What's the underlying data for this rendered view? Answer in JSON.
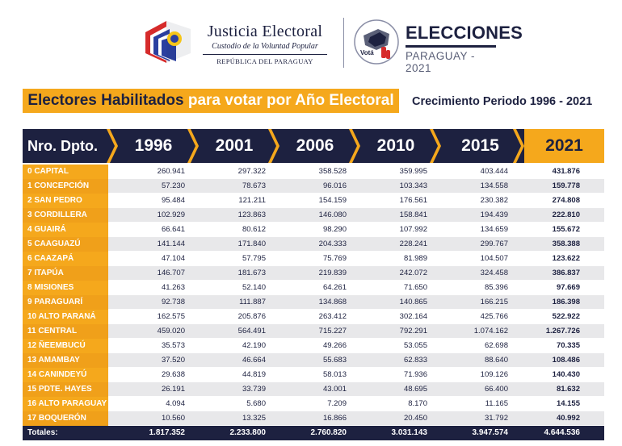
{
  "header": {
    "org_title": "Justicia Electoral",
    "org_subtitle": "Custodio de la Voluntad Popular",
    "org_country": "REPÚBLICA DEL PARAGUAY",
    "vote_badge": "Votá",
    "elections_title": "ELECCIONES",
    "elections_subtitle": "PARAGUAY - 2021"
  },
  "banner": {
    "title_dark": "Electores Habilitados",
    "title_white": "para votar por Año Electoral",
    "growth": "Crecimiento Periodo 1996 - 2021"
  },
  "colors": {
    "navy": "#1d2140",
    "orange": "#f5a81c",
    "stripe": "#e8e8ea"
  },
  "table": {
    "first_header": "Nro. Dpto.",
    "years": [
      "1996",
      "2001",
      "2006",
      "2010",
      "2015",
      "2021"
    ],
    "rows": [
      {
        "dpto": "0 CAPITAL",
        "v": [
          "260.941",
          "297.322",
          "358.528",
          "359.995",
          "403.444",
          "431.876"
        ]
      },
      {
        "dpto": "1 CONCEPCIÓN",
        "v": [
          "57.230",
          "78.673",
          "96.016",
          "103.343",
          "134.558",
          "159.778"
        ]
      },
      {
        "dpto": "2 SAN PEDRO",
        "v": [
          "95.484",
          "121.211",
          "154.159",
          "176.561",
          "230.382",
          "274.808"
        ]
      },
      {
        "dpto": "3 CORDILLERA",
        "v": [
          "102.929",
          "123.863",
          "146.080",
          "158.841",
          "194.439",
          "222.810"
        ]
      },
      {
        "dpto": "4 GUAIRÁ",
        "v": [
          "66.641",
          "80.612",
          "98.290",
          "107.992",
          "134.659",
          "155.672"
        ]
      },
      {
        "dpto": "5 CAAGUAZÚ",
        "v": [
          "141.144",
          "171.840",
          "204.333",
          "228.241",
          "299.767",
          "358.388"
        ]
      },
      {
        "dpto": "6 CAAZAPÁ",
        "v": [
          "47.104",
          "57.795",
          "75.769",
          "81.989",
          "104.507",
          "123.622"
        ]
      },
      {
        "dpto": "7 ITAPÚA",
        "v": [
          "146.707",
          "181.673",
          "219.839",
          "242.072",
          "324.458",
          "386.837"
        ]
      },
      {
        "dpto": "8 MISIONES",
        "v": [
          "41.263",
          "52.140",
          "64.261",
          "71.650",
          "85.396",
          "97.669"
        ]
      },
      {
        "dpto": "9 PARAGUARÍ",
        "v": [
          "92.738",
          "111.887",
          "134.868",
          "140.865",
          "166.215",
          "186.398"
        ]
      },
      {
        "dpto": "10 ALTO PARANÁ",
        "v": [
          "162.575",
          "205.876",
          "263.412",
          "302.164",
          "425.766",
          "522.922"
        ]
      },
      {
        "dpto": "11 CENTRAL",
        "v": [
          "459.020",
          "564.491",
          "715.227",
          "792.291",
          "1.074.162",
          "1.267.726"
        ]
      },
      {
        "dpto": "12 ÑEEMBUCÚ",
        "v": [
          "35.573",
          "42.190",
          "49.266",
          "53.055",
          "62.698",
          "70.335"
        ]
      },
      {
        "dpto": "13 AMAMBAY",
        "v": [
          "37.520",
          "46.664",
          "55.683",
          "62.833",
          "88.640",
          "108.486"
        ]
      },
      {
        "dpto": "14 CANINDEYÚ",
        "v": [
          "29.638",
          "44.819",
          "58.013",
          "71.936",
          "109.126",
          "140.430"
        ]
      },
      {
        "dpto": "15 PDTE. HAYES",
        "v": [
          "26.191",
          "33.739",
          "43.001",
          "48.695",
          "66.400",
          "81.632"
        ]
      },
      {
        "dpto": "16 ALTO PARAGUAY",
        "v": [
          "4.094",
          "5.680",
          "7.209",
          "8.170",
          "11.165",
          "14.155"
        ]
      },
      {
        "dpto": "17 BOQUERÓN",
        "v": [
          "10.560",
          "13.325",
          "16.866",
          "20.450",
          "31.792",
          "40.992"
        ]
      }
    ],
    "totals_label": "Totales:",
    "totals": [
      "1.817.352",
      "2.233.800",
      "2.760.820",
      "3.031.143",
      "3.947.574",
      "4.644.536"
    ]
  }
}
